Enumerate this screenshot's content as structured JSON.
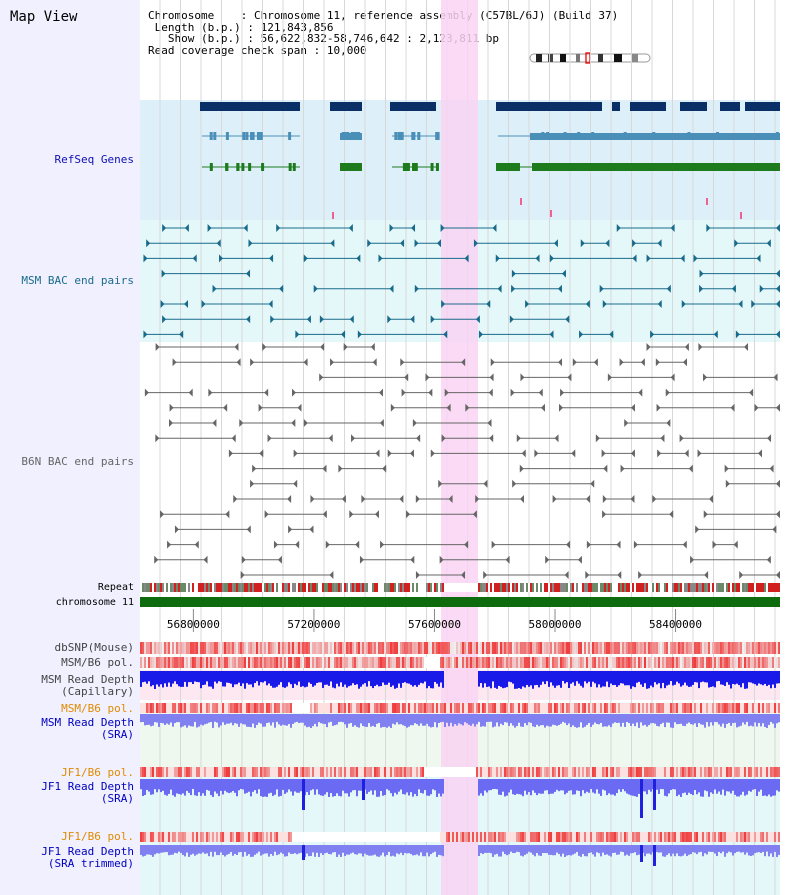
{
  "view": {
    "title": "Map View",
    "chromosome_label": "Chromosome",
    "chromosome_value": "Chromosome 11, reference assembly (C57BL/6J) (Build 37)",
    "length_label": "Length (b.p.)",
    "length_value": "121,843,856",
    "show_label": "Show (b.p.)",
    "show_value": "56,622,832-58,746,642 : 2,123,811 bp",
    "coverage_label": "Read coverage check span",
    "coverage_value": "10,000"
  },
  "tracks": {
    "refseq": "RefSeq Genes",
    "msm_bac": "MSM BAC end pairs",
    "b6n_bac": "B6N BAC end pairs",
    "repeat": "Repeat",
    "chrom": "chromosome 11",
    "dbsnp": "dbSNP(Mouse)",
    "msm_pol": "MSM/B6 pol.",
    "msm_depth_cap_1": "MSM Read Depth",
    "msm_depth_cap_2": "(Capillary)",
    "msm_pol2": "MSM/B6 pol.",
    "msm_depth_sra_1": "MSM Read Depth",
    "msm_depth_sra_2": "(SRA)",
    "jf1_pol": "JF1/B6 pol.",
    "jf1_depth_sra_1": "JF1 Read Depth",
    "jf1_depth_sra_2": "(SRA)",
    "jf1_pol2": "JF1/B6 pol.",
    "jf1_depth_trim_1": "JF1 Read Depth",
    "jf1_depth_trim_2": "(SRA trimmed)"
  },
  "axis": {
    "ticks": [
      {
        "pos": 56800000,
        "label": "56800000"
      },
      {
        "pos": 57200000,
        "label": "57200000"
      },
      {
        "pos": 57600000,
        "label": "57600000"
      },
      {
        "pos": 58000000,
        "label": "58000000"
      },
      {
        "pos": 58400000,
        "label": "58400000"
      }
    ],
    "range": [
      56622832,
      58746642
    ]
  },
  "colors": {
    "refseq_bg": "#ddf0fa",
    "msm_bg": "#e4f8fa",
    "highlight": "#f9d4f2",
    "chrom": "#0e6b0e",
    "refseq_dark": "#0a2f66",
    "refseq_mid": "#4a8fb8",
    "refseq_green": "#1d7a1d",
    "msm_pair": "#1a6b8a",
    "b6n_pair": "#666666",
    "msm_label": "#1a6b8a",
    "refseq_label": "#1010b0",
    "orange_label": "#e08a00",
    "blue_label": "#0000c0"
  }
}
